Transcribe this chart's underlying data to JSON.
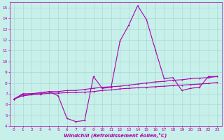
{
  "title": "",
  "xlabel": "Windchill (Refroidissement éolien,°C)",
  "ylabel": "",
  "bg_color": "#c8f0ea",
  "grid_color": "#a8d8d4",
  "line_color": "#aa00aa",
  "xlim": [
    -0.5,
    23.5
  ],
  "ylim": [
    4,
    15.5
  ],
  "yticks": [
    4,
    5,
    6,
    7,
    8,
    9,
    10,
    11,
    12,
    13,
    14,
    15
  ],
  "xticks": [
    0,
    1,
    2,
    3,
    4,
    5,
    6,
    7,
    8,
    9,
    10,
    11,
    12,
    13,
    14,
    15,
    16,
    17,
    18,
    19,
    20,
    21,
    22,
    23
  ],
  "line1_x": [
    0,
    1,
    2,
    3,
    4,
    5,
    6,
    7,
    8,
    9,
    10,
    11,
    12,
    13,
    14,
    15,
    16,
    17,
    18,
    19,
    20,
    21,
    22,
    23
  ],
  "line1_y": [
    6.5,
    7.0,
    7.0,
    7.0,
    7.2,
    6.8,
    4.7,
    4.4,
    4.5,
    8.6,
    7.5,
    7.6,
    11.9,
    13.4,
    15.2,
    13.9,
    11.1,
    8.4,
    8.5,
    7.3,
    7.5,
    7.6,
    8.6,
    8.6
  ],
  "line2_x": [
    0,
    1,
    2,
    3,
    4,
    5,
    6,
    7,
    8,
    9,
    10,
    11,
    12,
    13,
    14,
    15,
    16,
    17,
    18,
    19,
    20,
    21,
    22,
    23
  ],
  "line2_y": [
    6.5,
    6.9,
    7.0,
    7.1,
    7.2,
    7.2,
    7.3,
    7.3,
    7.4,
    7.5,
    7.6,
    7.65,
    7.7,
    7.8,
    7.9,
    8.0,
    8.1,
    8.15,
    8.25,
    8.3,
    8.4,
    8.45,
    8.5,
    8.6
  ],
  "line3_x": [
    0,
    1,
    2,
    3,
    4,
    5,
    6,
    7,
    8,
    9,
    10,
    11,
    12,
    13,
    14,
    15,
    16,
    17,
    18,
    19,
    20,
    21,
    22,
    23
  ],
  "line3_y": [
    6.5,
    6.8,
    6.9,
    6.95,
    7.05,
    7.05,
    7.1,
    7.1,
    7.15,
    7.2,
    7.3,
    7.35,
    7.45,
    7.5,
    7.55,
    7.6,
    7.65,
    7.7,
    7.75,
    7.8,
    7.85,
    7.9,
    7.95,
    8.05
  ],
  "tick_fontsize": 4.2,
  "xlabel_fontsize": 5.0,
  "lw": 0.8,
  "ms": 2.0
}
